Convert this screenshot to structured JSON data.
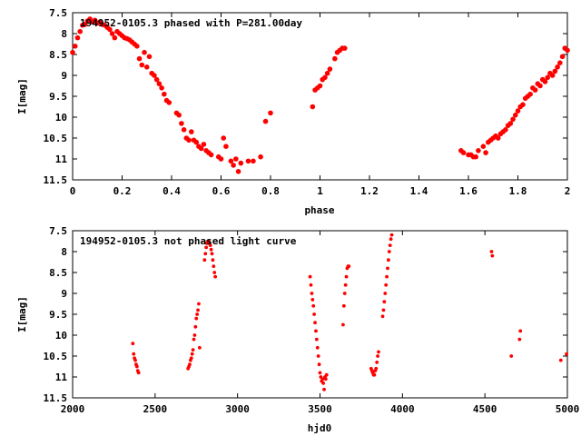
{
  "chart_data": [
    {
      "type": "scatter",
      "title": "194952-0105.3 phased with P=281.00day",
      "xlabel": "phase",
      "ylabel": "I[mag]",
      "xlim": [
        0,
        2
      ],
      "ylim": [
        7.5,
        11.5
      ],
      "y_inverted": true,
      "grid": false,
      "xticks": [
        "0",
        "0.2",
        "0.4",
        "0.6",
        "0.8",
        "1",
        "1.2",
        "1.4",
        "1.6",
        "1.8",
        "2"
      ],
      "yticks": [
        "7.5",
        "8",
        "8.5",
        "9",
        "9.5",
        "10",
        "10.5",
        "11",
        "11.5"
      ],
      "marker_color": "#ff0000",
      "series": [
        {
          "points": [
            [
              0.0,
              8.45
            ],
            [
              0.01,
              8.3
            ],
            [
              0.02,
              8.1
            ],
            [
              0.03,
              7.95
            ],
            [
              0.04,
              7.8
            ],
            [
              0.05,
              7.78
            ],
            [
              0.06,
              7.7
            ],
            [
              0.07,
              7.65
            ],
            [
              0.08,
              7.72
            ],
            [
              0.09,
              7.68
            ],
            [
              0.1,
              7.75
            ],
            [
              0.11,
              7.72
            ],
            [
              0.12,
              7.78
            ],
            [
              0.13,
              7.8
            ],
            [
              0.14,
              7.85
            ],
            [
              0.15,
              7.9
            ],
            [
              0.16,
              8.0
            ],
            [
              0.17,
              8.1
            ],
            [
              0.18,
              7.95
            ],
            [
              0.19,
              8.0
            ],
            [
              0.2,
              8.05
            ],
            [
              0.21,
              8.1
            ],
            [
              0.22,
              8.12
            ],
            [
              0.23,
              8.15
            ],
            [
              0.24,
              8.2
            ],
            [
              0.25,
              8.25
            ],
            [
              0.26,
              8.3
            ],
            [
              0.27,
              8.6
            ],
            [
              0.28,
              8.75
            ],
            [
              0.29,
              8.45
            ],
            [
              0.3,
              8.8
            ],
            [
              0.31,
              8.55
            ],
            [
              0.32,
              8.95
            ],
            [
              0.33,
              9.0
            ],
            [
              0.34,
              9.1
            ],
            [
              0.35,
              9.2
            ],
            [
              0.36,
              9.3
            ],
            [
              0.37,
              9.45
            ],
            [
              0.38,
              9.6
            ],
            [
              0.39,
              9.65
            ],
            [
              0.42,
              9.9
            ],
            [
              0.43,
              9.95
            ],
            [
              0.44,
              10.15
            ],
            [
              0.45,
              10.3
            ],
            [
              0.46,
              10.5
            ],
            [
              0.47,
              10.55
            ],
            [
              0.48,
              10.35
            ],
            [
              0.49,
              10.55
            ],
            [
              0.5,
              10.6
            ],
            [
              0.51,
              10.7
            ],
            [
              0.52,
              10.75
            ],
            [
              0.53,
              10.65
            ],
            [
              0.54,
              10.8
            ],
            [
              0.55,
              10.85
            ],
            [
              0.56,
              10.9
            ],
            [
              0.59,
              10.95
            ],
            [
              0.6,
              11.0
            ],
            [
              0.61,
              10.5
            ],
            [
              0.62,
              10.7
            ],
            [
              0.64,
              11.05
            ],
            [
              0.65,
              11.15
            ],
            [
              0.66,
              11.0
            ],
            [
              0.67,
              11.3
            ],
            [
              0.68,
              11.1
            ],
            [
              0.71,
              11.05
            ],
            [
              0.73,
              11.05
            ],
            [
              0.76,
              10.95
            ],
            [
              0.78,
              10.1
            ],
            [
              0.8,
              9.9
            ],
            [
              0.97,
              9.75
            ],
            [
              0.98,
              9.35
            ],
            [
              0.99,
              9.3
            ],
            [
              1.0,
              9.25
            ],
            [
              1.01,
              9.1
            ],
            [
              1.02,
              9.05
            ],
            [
              1.03,
              8.95
            ],
            [
              1.04,
              8.85
            ],
            [
              1.06,
              8.6
            ],
            [
              1.07,
              8.45
            ],
            [
              1.08,
              8.4
            ],
            [
              1.09,
              8.35
            ],
            [
              1.1,
              8.35
            ],
            [
              1.57,
              10.8
            ],
            [
              1.58,
              10.85
            ],
            [
              1.6,
              10.9
            ],
            [
              1.61,
              10.9
            ],
            [
              1.62,
              10.95
            ],
            [
              1.63,
              10.95
            ],
            [
              1.64,
              10.8
            ],
            [
              1.66,
              10.7
            ],
            [
              1.67,
              10.85
            ],
            [
              1.68,
              10.6
            ],
            [
              1.69,
              10.55
            ],
            [
              1.7,
              10.5
            ],
            [
              1.71,
              10.45
            ],
            [
              1.72,
              10.5
            ],
            [
              1.73,
              10.4
            ],
            [
              1.74,
              10.35
            ],
            [
              1.75,
              10.3
            ],
            [
              1.76,
              10.2
            ],
            [
              1.77,
              10.15
            ],
            [
              1.78,
              10.05
            ],
            [
              1.79,
              9.95
            ],
            [
              1.8,
              9.85
            ],
            [
              1.81,
              9.75
            ],
            [
              1.82,
              9.7
            ],
            [
              1.83,
              9.55
            ],
            [
              1.84,
              9.5
            ],
            [
              1.85,
              9.45
            ],
            [
              1.86,
              9.3
            ],
            [
              1.87,
              9.35
            ],
            [
              1.88,
              9.2
            ],
            [
              1.89,
              9.25
            ],
            [
              1.9,
              9.1
            ],
            [
              1.91,
              9.15
            ],
            [
              1.92,
              9.05
            ],
            [
              1.93,
              8.95
            ],
            [
              1.94,
              9.0
            ],
            [
              1.95,
              8.9
            ],
            [
              1.96,
              8.8
            ],
            [
              1.97,
              8.7
            ],
            [
              1.98,
              8.55
            ],
            [
              1.99,
              8.35
            ],
            [
              2.0,
              8.4
            ]
          ]
        }
      ]
    },
    {
      "type": "scatter",
      "title": "194952-0105.3 not phased light curve",
      "xlabel": "hjd0",
      "ylabel": "I[mag]",
      "xlim": [
        2000,
        5000
      ],
      "ylim": [
        7.5,
        11.5
      ],
      "y_inverted": true,
      "grid": false,
      "xticks": [
        "2000",
        "2500",
        "3000",
        "3500",
        "4000",
        "4500",
        "5000"
      ],
      "yticks": [
        "7.5",
        "8",
        "8.5",
        "9",
        "9.5",
        "10",
        "10.5",
        "11",
        "11.5"
      ],
      "marker_color": "#ff0000",
      "series": [
        {
          "points": [
            [
              2365,
              10.2
            ],
            [
              2370,
              10.45
            ],
            [
              2375,
              10.55
            ],
            [
              2380,
              10.6
            ],
            [
              2385,
              10.7
            ],
            [
              2390,
              10.75
            ],
            [
              2395,
              10.85
            ],
            [
              2400,
              10.9
            ],
            [
              2700,
              10.8
            ],
            [
              2705,
              10.75
            ],
            [
              2710,
              10.7
            ],
            [
              2715,
              10.6
            ],
            [
              2720,
              10.55
            ],
            [
              2725,
              10.45
            ],
            [
              2730,
              10.35
            ],
            [
              2735,
              10.1
            ],
            [
              2740,
              10.0
            ],
            [
              2745,
              9.8
            ],
            [
              2750,
              9.6
            ],
            [
              2755,
              9.5
            ],
            [
              2760,
              9.4
            ],
            [
              2765,
              9.25
            ],
            [
              2770,
              10.3
            ],
            [
              2800,
              8.2
            ],
            [
              2805,
              8.05
            ],
            [
              2810,
              7.9
            ],
            [
              2815,
              7.8
            ],
            [
              2820,
              7.75
            ],
            [
              2825,
              7.75
            ],
            [
              2830,
              7.8
            ],
            [
              2835,
              7.85
            ],
            [
              2840,
              7.95
            ],
            [
              2845,
              8.05
            ],
            [
              2850,
              8.2
            ],
            [
              2855,
              8.35
            ],
            [
              2860,
              8.5
            ],
            [
              2865,
              8.6
            ],
            [
              3440,
              8.6
            ],
            [
              3445,
              8.8
            ],
            [
              3450,
              9.0
            ],
            [
              3455,
              9.15
            ],
            [
              3460,
              9.3
            ],
            [
              3465,
              9.5
            ],
            [
              3470,
              9.7
            ],
            [
              3475,
              9.9
            ],
            [
              3480,
              10.1
            ],
            [
              3485,
              10.3
            ],
            [
              3490,
              10.5
            ],
            [
              3495,
              10.7
            ],
            [
              3500,
              10.9
            ],
            [
              3505,
              11.0
            ],
            [
              3510,
              11.1
            ],
            [
              3515,
              11.05
            ],
            [
              3520,
              11.15
            ],
            [
              3525,
              11.3
            ],
            [
              3530,
              11.0
            ],
            [
              3540,
              10.95
            ],
            [
              3535,
              11.05
            ],
            [
              3640,
              9.75
            ],
            [
              3645,
              9.3
            ],
            [
              3650,
              9.0
            ],
            [
              3655,
              8.8
            ],
            [
              3660,
              8.6
            ],
            [
              3665,
              8.4
            ],
            [
              3670,
              8.35
            ],
            [
              3675,
              8.35
            ],
            [
              3810,
              10.8
            ],
            [
              3815,
              10.85
            ],
            [
              3820,
              10.9
            ],
            [
              3825,
              10.95
            ],
            [
              3830,
              10.95
            ],
            [
              3835,
              10.85
            ],
            [
              3840,
              10.8
            ],
            [
              3845,
              10.65
            ],
            [
              3850,
              10.5
            ],
            [
              3855,
              10.4
            ],
            [
              3880,
              9.55
            ],
            [
              3885,
              9.4
            ],
            [
              3890,
              9.2
            ],
            [
              3895,
              9.0
            ],
            [
              3900,
              8.8
            ],
            [
              3905,
              8.6
            ],
            [
              3910,
              8.4
            ],
            [
              3915,
              8.2
            ],
            [
              3920,
              8.0
            ],
            [
              3925,
              7.85
            ],
            [
              3930,
              7.7
            ],
            [
              3935,
              7.6
            ],
            [
              4540,
              8.0
            ],
            [
              4545,
              8.1
            ],
            [
              4660,
              10.5
            ],
            [
              4710,
              10.1
            ],
            [
              4715,
              9.9
            ],
            [
              4960,
              10.6
            ],
            [
              4995,
              10.45
            ]
          ]
        }
      ]
    }
  ]
}
